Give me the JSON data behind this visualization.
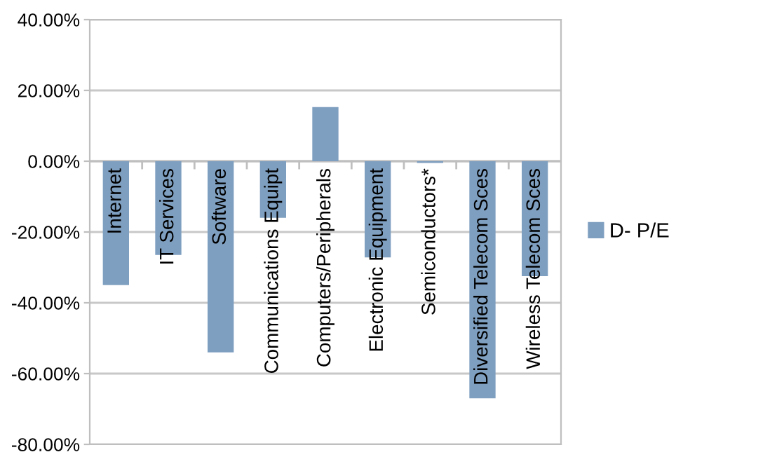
{
  "chart_data": {
    "type": "bar",
    "categories": [
      "Internet",
      "IT Services",
      "Software",
      "Communications Equipt",
      "Computers/Peripherals",
      "Electronic Equipment",
      "Semiconductors*",
      "Diversified Telecom Sces",
      "Wireless Telecom Sces"
    ],
    "series": [
      {
        "name": "D- P/E",
        "color": "#7f9fc0",
        "values": [
          -35.0,
          -26.5,
          -54.0,
          -16.0,
          15.3,
          -27.2,
          -0.5,
          -67.0,
          -32.5
        ]
      }
    ],
    "ylim": [
      -80,
      40
    ],
    "yticks": [
      {
        "value": -80,
        "label": "-80.00%"
      },
      {
        "value": -60,
        "label": "-60.00%"
      },
      {
        "value": -40,
        "label": "-40.00%"
      },
      {
        "value": -20,
        "label": "-20.00%"
      },
      {
        "value": 0,
        "label": "0.00%"
      },
      {
        "value": 20,
        "label": "20.00%"
      },
      {
        "value": 40,
        "label": "40.00%"
      }
    ],
    "grid": "y",
    "legend": "right"
  }
}
